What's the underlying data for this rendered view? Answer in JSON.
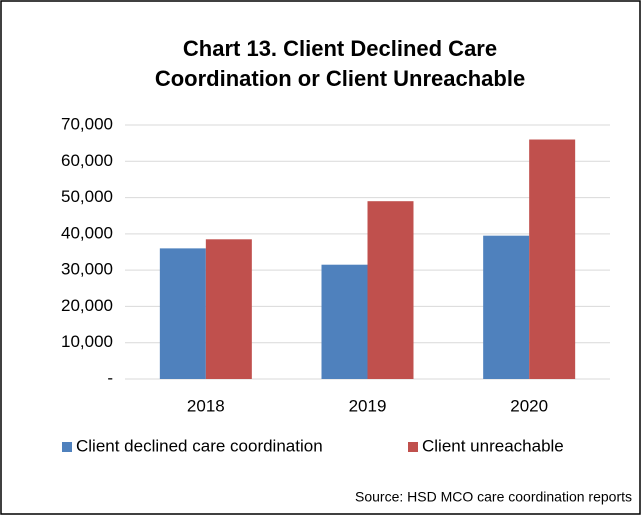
{
  "chart_data": {
    "type": "bar",
    "title": [
      "Chart 13. Client Declined Care",
      "Coordination or Client Unreachable"
    ],
    "categories": [
      "2018",
      "2019",
      "2020"
    ],
    "series": [
      {
        "name": "Client declined care coordination",
        "color": "#4f81bd",
        "values": [
          36000,
          31500,
          39500
        ]
      },
      {
        "name": "Client unreachable",
        "color": "#c0504d",
        "values": [
          38500,
          49000,
          66000
        ]
      }
    ],
    "ylim": [
      0,
      70000
    ],
    "yticks": [
      {
        "value": 0,
        "label": "-"
      },
      {
        "value": 10000,
        "label": "10,000"
      },
      {
        "value": 20000,
        "label": "20,000"
      },
      {
        "value": 30000,
        "label": "30,000"
      },
      {
        "value": 40000,
        "label": "40,000"
      },
      {
        "value": 50000,
        "label": "50,000"
      },
      {
        "value": 60000,
        "label": "60,000"
      },
      {
        "value": 70000,
        "label": "70,000"
      }
    ],
    "grid": true,
    "legend": "bottom",
    "source": "Source: HSD MCO care coordination reports"
  }
}
